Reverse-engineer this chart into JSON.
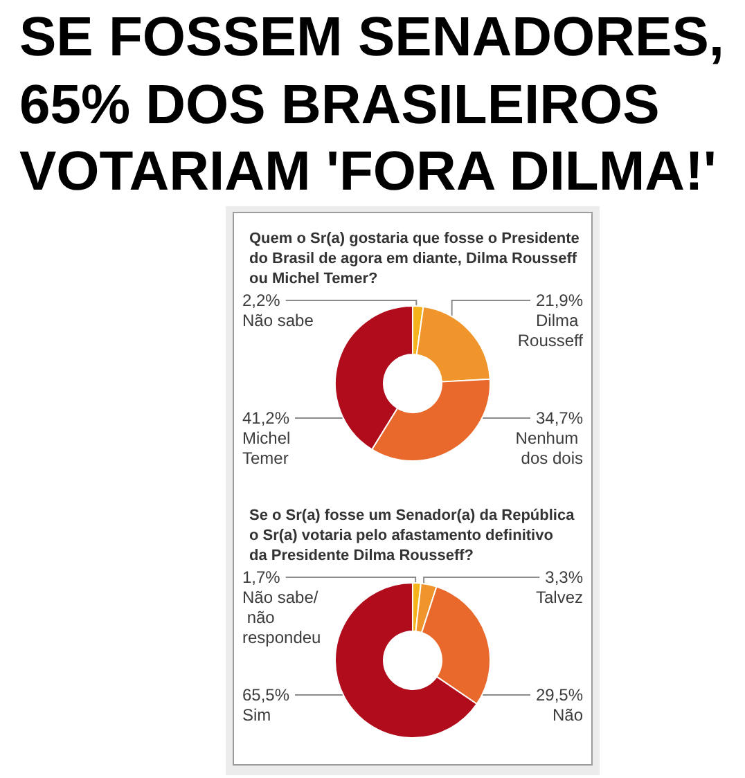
{
  "chart_data": [
    {
      "type": "other",
      "title": "SE FOSSEM SENADORES, 65% DOS BRASILEIROS VOTARIAM 'FORA DILMA!'"
    },
    {
      "type": "donut",
      "title": "Quem o Sr(a) gostaria que fosse o Presidente\ndo Brasil de agora em diante, Dilma Rousseff\nou Michel Temer?",
      "categories": [
        "Não sabe",
        "Dilma Rousseff",
        "Nenhum dos dois",
        "Michel Temer"
      ],
      "values": [
        2.2,
        21.9,
        34.7,
        41.2
      ],
      "value_labels": [
        "2,2%",
        "21,9%",
        "34,7%",
        "41,2%"
      ],
      "colors": [
        "#f5b31b",
        "#f0952b",
        "#e8692b",
        "#b00c1c"
      ]
    },
    {
      "type": "donut",
      "title": "Se o Sr(a) fosse um Senador(a) da República\no Sr(a) votaria pelo afastamento definitivo\nda Presidente Dilma Rousseff?",
      "categories": [
        "Não sabe/ não respondeu",
        "Talvez",
        "Não",
        "Sim"
      ],
      "values": [
        1.7,
        3.3,
        29.5,
        65.5
      ],
      "value_labels": [
        "1,7%",
        "3,3%",
        "29,5%",
        "65,5%"
      ],
      "colors": [
        "#f5b31b",
        "#f0952b",
        "#e8692b",
        "#b00c1c"
      ]
    }
  ]
}
